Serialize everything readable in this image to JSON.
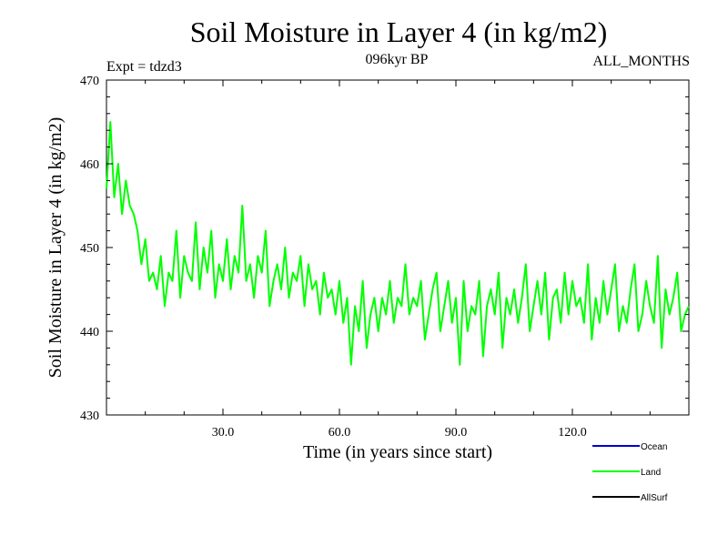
{
  "chart_data": {
    "type": "line",
    "title": "Soil Moisture in Layer 4 (in kg/m2)",
    "subtitle_left": "Expt = tdzd3",
    "subtitle_center": "096kyr BP",
    "subtitle_right": "ALL_MONTHS",
    "xlabel": "Time (in years since start)",
    "ylabel": "Soil Moisture in Layer 4 (in kg/m2)",
    "xlim": [
      0,
      150
    ],
    "ylim": [
      430,
      470
    ],
    "x_ticks": [
      30,
      60,
      90,
      120
    ],
    "x_tick_labels": [
      "30.0",
      "60.0",
      "90.0",
      "120.0"
    ],
    "y_ticks": [
      430,
      440,
      450,
      460,
      470
    ],
    "y_tick_labels": [
      "430",
      "440",
      "450",
      "460",
      "470"
    ],
    "legend": [
      {
        "name": "Ocean",
        "color": "#0000cc"
      },
      {
        "name": "Land",
        "color": "#00ff00"
      },
      {
        "name": "AllSurf",
        "color": "#000000"
      }
    ],
    "series": [
      {
        "name": "Land",
        "color": "#00ff00",
        "x": [
          0,
          1,
          2,
          3,
          4,
          5,
          6,
          7,
          8,
          9,
          10,
          11,
          12,
          13,
          14,
          15,
          16,
          17,
          18,
          19,
          20,
          21,
          22,
          23,
          24,
          25,
          26,
          27,
          28,
          29,
          30,
          31,
          32,
          33,
          34,
          35,
          36,
          37,
          38,
          39,
          40,
          41,
          42,
          43,
          44,
          45,
          46,
          47,
          48,
          49,
          50,
          51,
          52,
          53,
          54,
          55,
          56,
          57,
          58,
          59,
          60,
          61,
          62,
          63,
          64,
          65,
          66,
          67,
          68,
          69,
          70,
          71,
          72,
          73,
          74,
          75,
          76,
          77,
          78,
          79,
          80,
          81,
          82,
          83,
          84,
          85,
          86,
          87,
          88,
          89,
          90,
          91,
          92,
          93,
          94,
          95,
          96,
          97,
          98,
          99,
          100,
          101,
          102,
          103,
          104,
          105,
          106,
          107,
          108,
          109,
          110,
          111,
          112,
          113,
          114,
          115,
          116,
          117,
          118,
          119,
          120,
          121,
          122,
          123,
          124,
          125,
          126,
          127,
          128,
          129,
          130,
          131,
          132,
          133,
          134,
          135,
          136,
          137,
          138,
          139,
          140,
          141,
          142,
          143,
          144,
          145,
          146,
          147,
          148,
          149,
          150
        ],
        "y": [
          457,
          465,
          456,
          460,
          454,
          458,
          455,
          454,
          452,
          448,
          451,
          446,
          447,
          445,
          449,
          443,
          447,
          446,
          452,
          444,
          449,
          447,
          446,
          453,
          445,
          450,
          447,
          452,
          444,
          448,
          446,
          451,
          445,
          449,
          447,
          455,
          446,
          448,
          444,
          449,
          447,
          452,
          443,
          446,
          448,
          445,
          450,
          444,
          447,
          446,
          449,
          443,
          448,
          445,
          446,
          442,
          447,
          444,
          445,
          442,
          446,
          441,
          444,
          436,
          443,
          440,
          446,
          438,
          442,
          444,
          440,
          444,
          442,
          446,
          441,
          444,
          443,
          448,
          442,
          444,
          443,
          446,
          439,
          442,
          445,
          447,
          440,
          443,
          446,
          441,
          444,
          436,
          446,
          440,
          443,
          442,
          446,
          437,
          443,
          445,
          442,
          447,
          438,
          444,
          442,
          445,
          441,
          444,
          448,
          440,
          443,
          446,
          442,
          447,
          439,
          444,
          445,
          441,
          447,
          442,
          446,
          443,
          444,
          441,
          448,
          439,
          444,
          441,
          446,
          442,
          445,
          448,
          440,
          443,
          441,
          445,
          448,
          440,
          442,
          446,
          443,
          441,
          449,
          438,
          445,
          442,
          444,
          447,
          440,
          442,
          443
        ]
      }
    ]
  }
}
